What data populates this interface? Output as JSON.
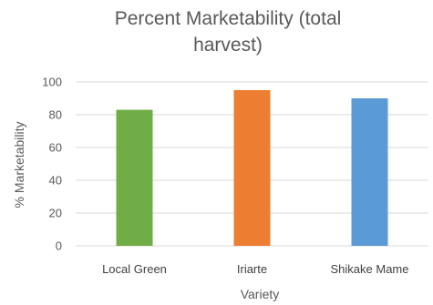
{
  "chart_data": {
    "type": "bar",
    "title_lines": [
      "Percent Marketability (total",
      "harvest)"
    ],
    "categories": [
      "Local Green",
      "Iriarte",
      "Shikake Mame"
    ],
    "values": [
      83,
      95,
      90
    ],
    "bar_colors": [
      "#70ad47",
      "#ed7d31",
      "#5b9bd5"
    ],
    "xlabel": "Variety",
    "ylabel": "% Marketability",
    "ylim": [
      0,
      100
    ],
    "yticks": [
      0,
      20,
      40,
      60,
      80,
      100
    ],
    "grid": true,
    "legend": "none"
  }
}
